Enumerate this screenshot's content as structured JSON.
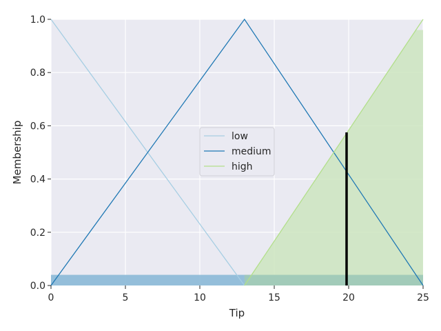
{
  "chart_data": {
    "type": "line",
    "title": "",
    "xlabel": "Tip",
    "ylabel": "Membership",
    "xlim": [
      0,
      25
    ],
    "ylim": [
      0,
      1.0
    ],
    "xticks": [
      0,
      5,
      10,
      15,
      20,
      25
    ],
    "yticks": [
      0.0,
      0.2,
      0.4,
      0.6,
      0.8,
      1.0
    ],
    "xtick_labels": [
      "0",
      "5",
      "10",
      "15",
      "20",
      "25"
    ],
    "ytick_labels": [
      "0.0",
      "0.2",
      "0.4",
      "0.6",
      "0.8",
      "1.0"
    ],
    "grid": true,
    "legend_position": "center",
    "series": [
      {
        "name": "low",
        "color": "#a6cee3",
        "x": [
          0,
          13
        ],
        "y": [
          1,
          0
        ]
      },
      {
        "name": "medium",
        "color": "#1f78b4",
        "x": [
          0,
          13,
          25
        ],
        "y": [
          0,
          1,
          0
        ]
      },
      {
        "name": "high",
        "color": "#b2df8a",
        "x": [
          13,
          25
        ],
        "y": [
          0,
          1
        ]
      }
    ],
    "activations": [
      {
        "series": "low",
        "level": 0.04,
        "x_range": [
          0,
          25
        ],
        "color": "#8fbcd8"
      },
      {
        "series": "medium",
        "level": 0.04,
        "x_range": [
          0,
          25
        ],
        "color": "#8fbcd8"
      },
      {
        "series": "high",
        "level": 0.96,
        "x_range": [
          13,
          25
        ],
        "color": "#cce5bf"
      }
    ],
    "crisp_output": {
      "x": 19.86,
      "y": 0.575,
      "color": "#000000"
    }
  }
}
